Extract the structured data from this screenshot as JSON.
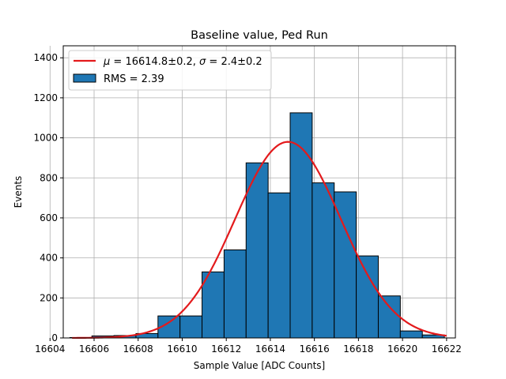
{
  "chart_data": {
    "type": "bar",
    "subtype": "histogram",
    "title": "Baseline value, Ped Run",
    "xlabel": "Sample Value [ADC Counts]",
    "ylabel": "Events",
    "xlim": [
      16604.6,
      16622.4
    ],
    "ylim": [
      0,
      1460
    ],
    "x_ticks": [
      16604,
      16606,
      16608,
      16610,
      16612,
      16614,
      16616,
      16618,
      16620,
      16622
    ],
    "y_ticks": [
      0,
      200,
      400,
      600,
      800,
      1000,
      1200,
      1400
    ],
    "grid": true,
    "legend_position": "upper-left",
    "bar_color": "#1f77b4",
    "bar_edge_color": "#000000",
    "fit_color": "#e31a1c",
    "bins": [
      {
        "left": 16604.9,
        "right": 16605.9,
        "value": 2
      },
      {
        "left": 16605.9,
        "right": 16606.9,
        "value": 10
      },
      {
        "left": 16606.9,
        "right": 16607.9,
        "value": 12
      },
      {
        "left": 16607.9,
        "right": 16608.9,
        "value": 22
      },
      {
        "left": 16608.9,
        "right": 16609.9,
        "value": 110
      },
      {
        "left": 16609.9,
        "right": 16610.9,
        "value": 110
      },
      {
        "left": 16610.9,
        "right": 16611.9,
        "value": 330
      },
      {
        "left": 16611.9,
        "right": 16612.9,
        "value": 440
      },
      {
        "left": 16612.9,
        "right": 16613.9,
        "value": 875
      },
      {
        "left": 16613.9,
        "right": 16614.9,
        "value": 725
      },
      {
        "left": 16614.9,
        "right": 16615.9,
        "value": 1125
      },
      {
        "left": 16615.9,
        "right": 16616.9,
        "value": 775
      },
      {
        "left": 16616.9,
        "right": 16617.9,
        "value": 730
      },
      {
        "left": 16617.9,
        "right": 16618.9,
        "value": 410
      },
      {
        "left": 16618.9,
        "right": 16619.9,
        "value": 210
      },
      {
        "left": 16619.9,
        "right": 16620.9,
        "value": 35
      },
      {
        "left": 16620.9,
        "right": 16621.9,
        "value": 15
      }
    ],
    "fit": {
      "mu": 16614.8,
      "sigma": 2.4,
      "amplitude": 980,
      "x_range": [
        16605,
        16622
      ]
    },
    "legend": {
      "fit_label_mu": "μ",
      "fit_label_mu_value": " = 16614.8±0.2, ",
      "fit_label_sigma": "σ",
      "fit_label_sigma_value": " = 2.4±0.2",
      "hist_label": "RMS = 2.39"
    }
  }
}
